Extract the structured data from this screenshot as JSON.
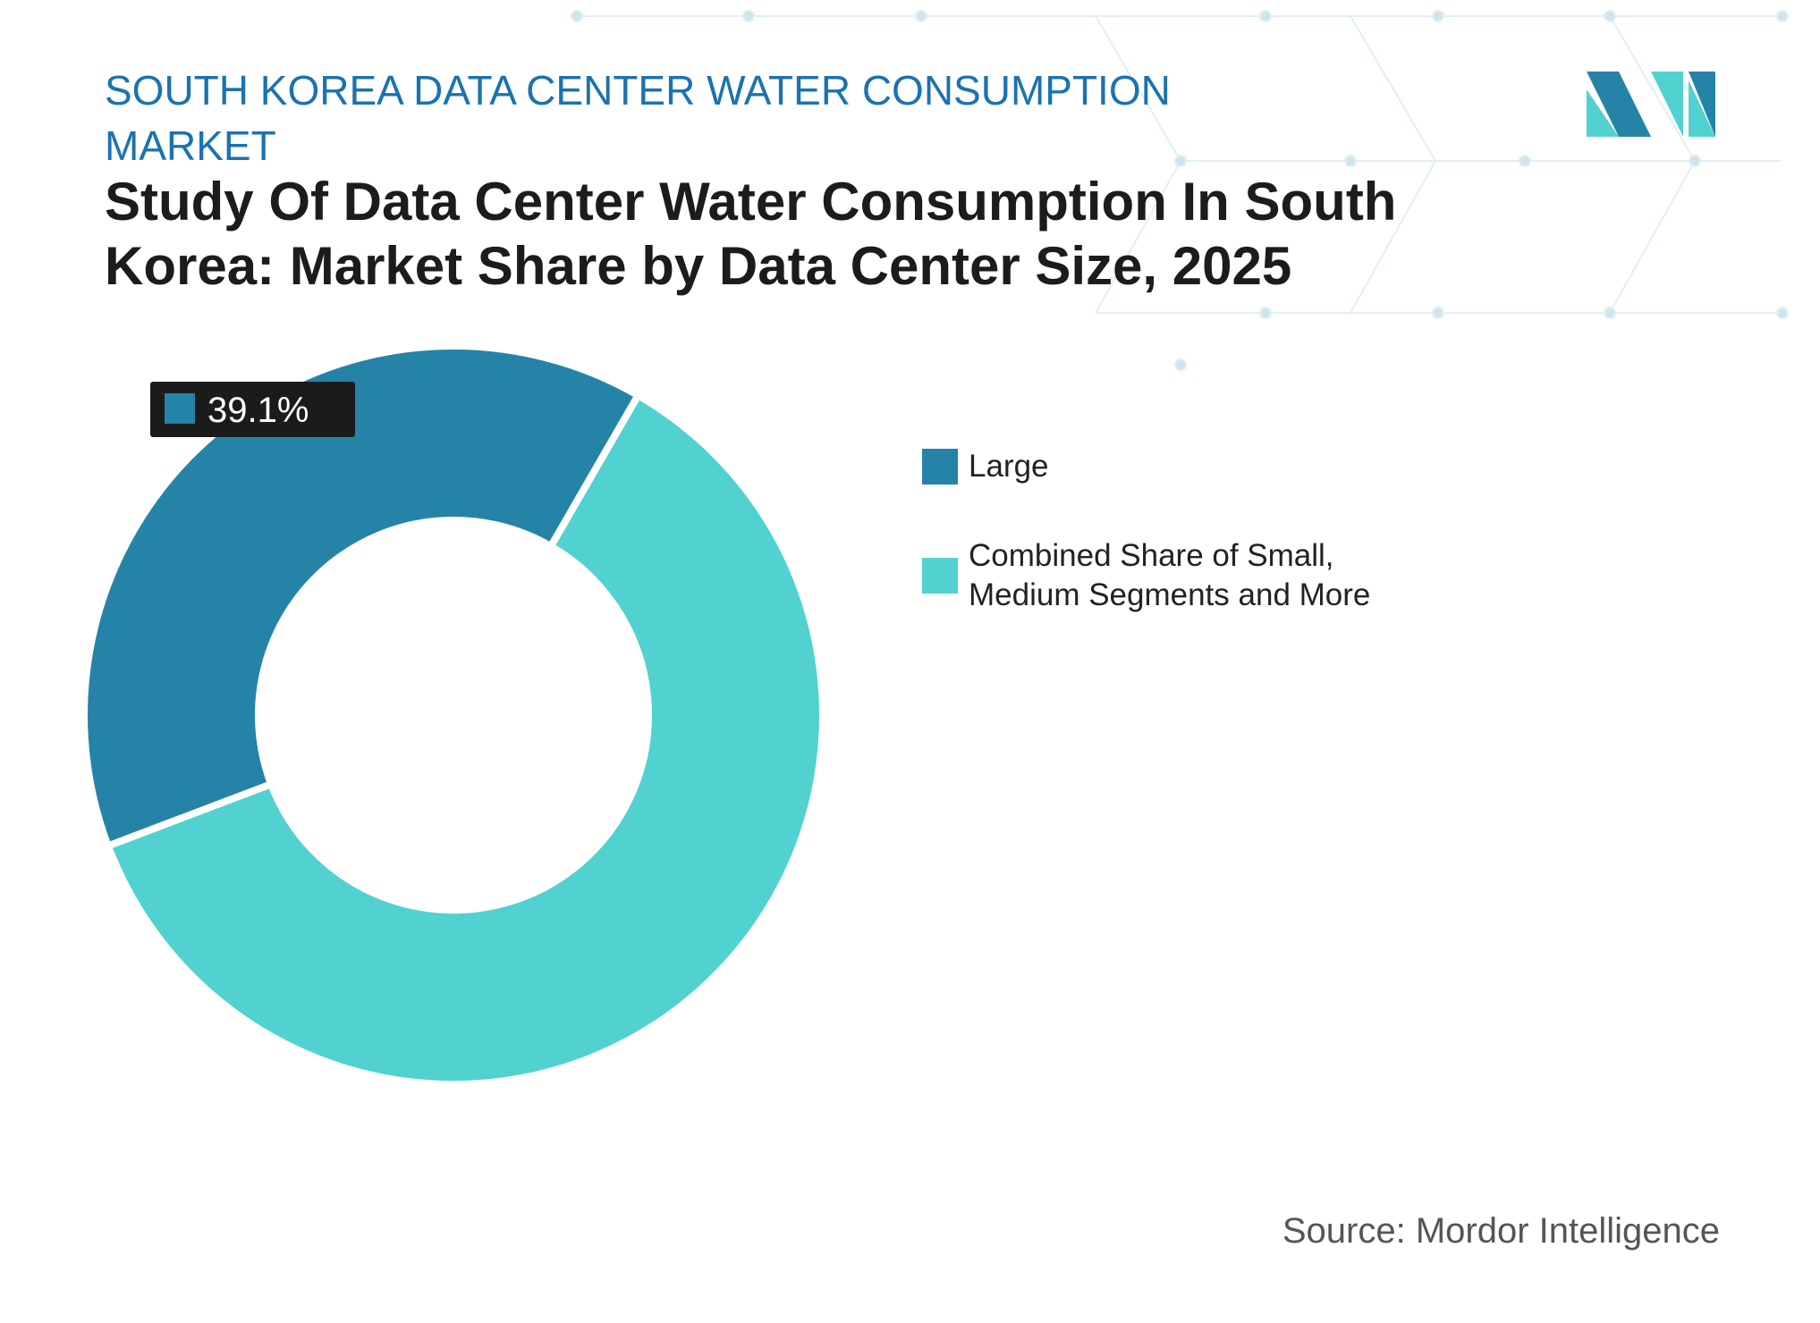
{
  "header": {
    "subtitle": "SOUTH KOREA DATA CENTER WATER CONSUMPTION MARKET",
    "source": "Source: Mordor Intelligence"
  },
  "chart_data": {
    "type": "donut",
    "title": "Study Of Data Center Water Consumption In South Korea: Market Share by Data Center Size, 2025",
    "categories": [
      "Large",
      "Combined Share of Small, Medium Segments and More"
    ],
    "values": [
      39.1,
      60.9
    ],
    "value_labels": [
      "39.1%",
      null
    ],
    "colors": [
      "#2683a8",
      "#52d1d1"
    ]
  }
}
